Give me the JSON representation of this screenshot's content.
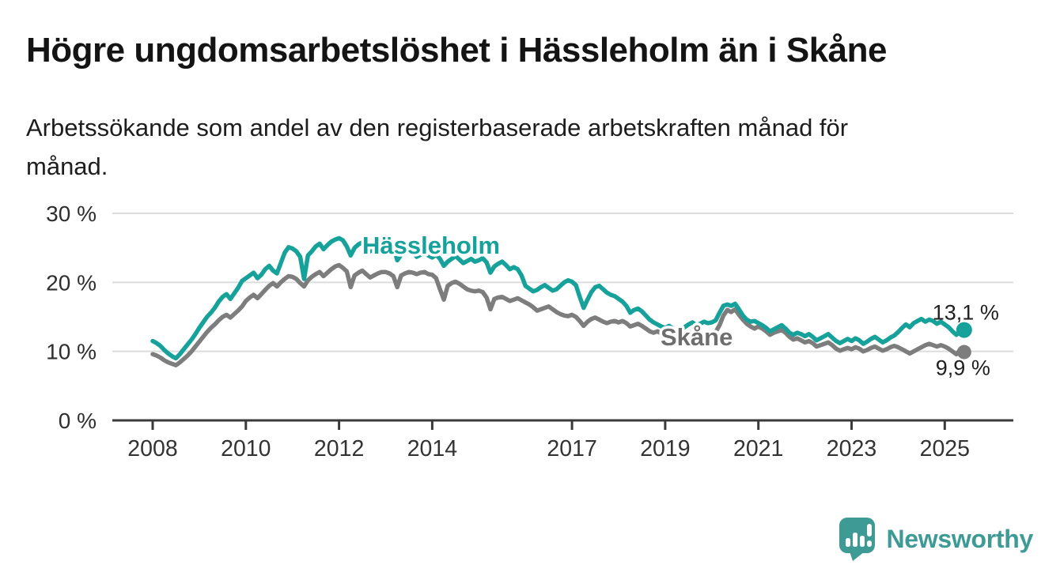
{
  "header": {
    "title": "Högre ungdomsarbetslöshet i Hässleholm än i Skåne",
    "subtitle_line1": "Arbetssökande som andel av den registerbaserade arbetskraften månad för",
    "subtitle_line2": "månad."
  },
  "footer": {
    "brand": "Newsworthy"
  },
  "colors": {
    "hassleholm": "#16a29a",
    "skane": "#7d7d7d",
    "skane_label": "#6e6e6e",
    "grid": "#dcdcdc",
    "axis": "#3a3a3a",
    "tick_text": "#333333",
    "value_text": "#1f1f1f",
    "logo": "#3e9a94"
  },
  "chart_data": {
    "type": "line",
    "title": "Högre ungdomsarbetslöshet i Hässleholm än i Skåne",
    "subtitle": "Arbetssökande som andel av den registerbaserade arbetskraften månad för månad.",
    "unit": "%",
    "frequency": "monthly",
    "x_start": "2008-01",
    "x_end": "2025-06",
    "ylim": [
      0,
      30
    ],
    "grid": "horizontal",
    "legend_position": "inline-labels",
    "yticks": [
      {
        "value": 0,
        "label": "0 %"
      },
      {
        "value": 10,
        "label": "10 %"
      },
      {
        "value": 20,
        "label": "20 %"
      },
      {
        "value": 30,
        "label": "30 %"
      }
    ],
    "xticks": [
      {
        "year": 2008,
        "label": "2008"
      },
      {
        "year": 2010,
        "label": "2010"
      },
      {
        "year": 2012,
        "label": "2012"
      },
      {
        "year": 2014,
        "label": "2014"
      },
      {
        "year": 2017,
        "label": "2017"
      },
      {
        "year": 2019,
        "label": "2019"
      },
      {
        "year": 2021,
        "label": "2021"
      },
      {
        "year": 2023,
        "label": "2023"
      },
      {
        "year": 2025,
        "label": "2025"
      }
    ],
    "series": [
      {
        "name": "Hässleholm",
        "color": "#16a29a",
        "end_label": "13,1 %",
        "end_value": 13.1,
        "values": [
          11.5,
          11.2,
          10.8,
          10.2,
          9.7,
          9.3,
          9.0,
          9.6,
          10.3,
          11.0,
          11.7,
          12.5,
          13.4,
          14.2,
          15.0,
          15.6,
          16.3,
          17.2,
          17.9,
          18.3,
          17.6,
          18.4,
          19.2,
          20.2,
          20.6,
          21.0,
          21.4,
          20.6,
          21.1,
          21.9,
          22.4,
          21.7,
          21.3,
          22.8,
          24.3,
          25.1,
          24.9,
          24.5,
          23.7,
          20.5,
          23.9,
          24.5,
          25.2,
          25.6,
          24.8,
          25.4,
          25.9,
          26.2,
          26.4,
          26.1,
          25.2,
          23.9,
          25.0,
          25.5,
          25.8,
          25.2,
          24.5,
          24.9,
          25.3,
          24.8,
          24.5,
          24.9,
          25.2,
          23.2,
          24.0,
          24.4,
          24.8,
          24.3,
          23.7,
          24.0,
          24.4,
          23.9,
          23.6,
          24.0,
          23.4,
          22.4,
          23.0,
          23.4,
          23.8,
          23.3,
          22.8,
          23.1,
          23.4,
          23.0,
          23.2,
          23.5,
          22.9,
          21.4,
          22.3,
          22.7,
          23.0,
          22.5,
          21.9,
          22.2,
          21.9,
          21.0,
          19.5,
          19.1,
          18.7,
          18.9,
          19.3,
          19.6,
          19.2,
          18.8,
          19.0,
          19.5,
          20.0,
          20.3,
          20.1,
          19.6,
          17.9,
          16.3,
          17.5,
          18.6,
          19.3,
          19.5,
          19.0,
          18.5,
          18.2,
          18.0,
          17.6,
          17.2,
          16.6,
          15.6,
          16.0,
          16.2,
          15.8,
          15.2,
          14.6,
          14.2,
          13.9,
          13.6,
          13.4,
          13.7,
          13.3,
          12.8,
          13.1,
          13.5,
          13.9,
          14.2,
          13.8,
          14.0,
          14.3,
          14.1,
          14.2,
          14.5,
          15.6,
          16.6,
          16.8,
          16.6,
          16.9,
          16.1,
          15.2,
          14.6,
          14.3,
          14.4,
          14.1,
          13.8,
          13.4,
          12.9,
          13.2,
          13.5,
          13.8,
          13.3,
          12.7,
          12.4,
          12.7,
          12.5,
          12.2,
          12.5,
          12.1,
          11.6,
          11.9,
          12.2,
          12.5,
          12.0,
          11.5,
          11.2,
          11.5,
          11.8,
          11.5,
          11.9,
          11.6,
          11.1,
          11.4,
          11.8,
          12.1,
          11.7,
          11.3,
          11.6,
          12.0,
          12.3,
          12.8,
          13.4,
          13.9,
          13.5,
          14.1,
          14.4,
          14.7,
          14.3,
          14.6,
          14.4,
          14.0,
          14.3,
          13.9,
          13.5,
          12.9,
          12.4,
          12.9,
          13.1
        ]
      },
      {
        "name": "Skåne",
        "color": "#7d7d7d",
        "end_label": "9,9 %",
        "end_value": 9.9,
        "values": [
          9.6,
          9.4,
          9.1,
          8.7,
          8.4,
          8.2,
          8.0,
          8.4,
          8.9,
          9.4,
          10.0,
          10.7,
          11.4,
          12.1,
          12.8,
          13.4,
          13.9,
          14.5,
          15.0,
          15.3,
          14.9,
          15.4,
          15.9,
          16.5,
          17.3,
          17.8,
          18.2,
          17.7,
          18.3,
          18.9,
          19.5,
          19.9,
          19.4,
          20.0,
          20.5,
          20.9,
          20.8,
          20.5,
          19.9,
          19.4,
          20.3,
          20.8,
          21.2,
          21.5,
          20.9,
          21.4,
          21.9,
          22.3,
          22.5,
          22.1,
          21.6,
          19.3,
          21.0,
          21.4,
          21.7,
          21.2,
          20.7,
          21.0,
          21.3,
          21.5,
          21.5,
          21.3,
          20.9,
          19.3,
          21.0,
          21.3,
          21.5,
          21.4,
          21.2,
          21.4,
          21.5,
          21.2,
          21.1,
          20.6,
          19.0,
          17.5,
          19.5,
          19.9,
          20.1,
          19.8,
          19.4,
          19.0,
          18.8,
          18.7,
          18.8,
          18.6,
          17.8,
          16.1,
          17.6,
          17.8,
          17.9,
          17.6,
          17.3,
          17.5,
          17.7,
          17.4,
          17.1,
          16.8,
          16.4,
          15.9,
          16.1,
          16.3,
          16.5,
          16.1,
          15.7,
          15.4,
          15.2,
          15.1,
          15.3,
          15.0,
          14.4,
          13.7,
          14.3,
          14.7,
          14.9,
          14.6,
          14.3,
          14.1,
          14.3,
          14.4,
          14.2,
          14.4,
          14.1,
          13.6,
          13.8,
          14.0,
          13.7,
          13.3,
          12.9,
          12.7,
          12.9,
          12.6,
          12.3,
          12.5,
          12.2,
          11.9,
          12.1,
          12.3,
          12.5,
          12.2,
          11.9,
          12.0,
          12.2,
          12.4,
          12.5,
          12.8,
          13.8,
          15.2,
          16.0,
          15.7,
          16.1,
          15.3,
          14.6,
          14.0,
          13.6,
          13.3,
          13.6,
          13.3,
          12.9,
          12.4,
          12.7,
          12.9,
          13.1,
          12.7,
          12.1,
          11.7,
          11.9,
          11.6,
          11.3,
          11.5,
          11.2,
          10.7,
          10.9,
          11.1,
          11.3,
          10.9,
          10.4,
          10.1,
          10.3,
          10.5,
          10.3,
          10.6,
          10.4,
          10.0,
          10.2,
          10.5,
          10.7,
          10.4,
          10.1,
          10.3,
          10.6,
          10.8,
          10.6,
          10.3,
          10.0,
          9.7,
          10.0,
          10.3,
          10.6,
          10.9,
          11.1,
          10.9,
          10.7,
          10.9,
          10.7,
          10.4,
          10.0,
          9.6,
          10.2,
          9.9
        ]
      }
    ]
  }
}
